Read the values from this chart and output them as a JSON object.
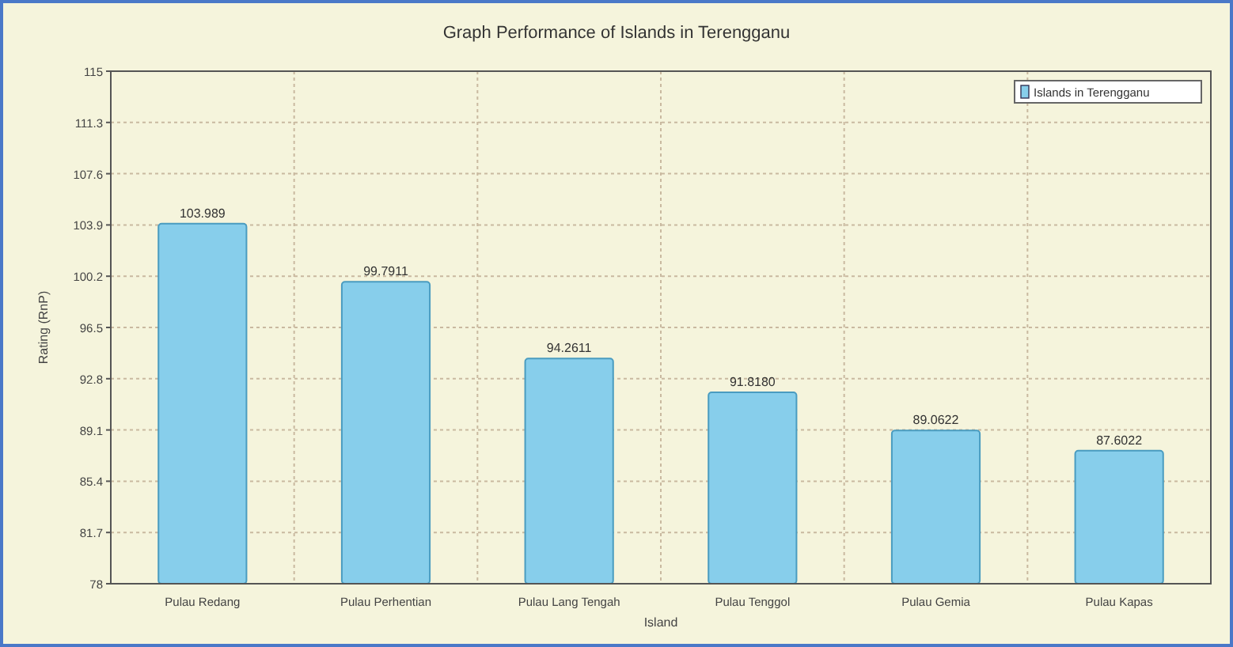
{
  "chart_data": {
    "type": "bar",
    "title": "Graph Performance of Islands in Terengganu",
    "xlabel": "Island",
    "ylabel": "Rating (RnP)",
    "categories": [
      "Pulau Redang",
      "Pulau Perhentian",
      "Pulau Lang Tengah",
      "Pulau Tenggol",
      "Pulau Gemia",
      "Pulau Kapas"
    ],
    "series": [
      {
        "name": "Islands in Terengganu",
        "color": "#87ceeb",
        "values": [
          103.989,
          99.7911,
          94.2611,
          91.818,
          89.0622,
          87.6022
        ],
        "value_labels": [
          "103.989",
          "99.7911",
          "94.2611",
          "91.8180",
          "89.0622",
          "87.6022"
        ]
      }
    ],
    "ylim": [
      78,
      115
    ],
    "yticks": [
      78,
      81.7,
      85.4,
      89.1,
      92.8,
      96.5,
      100.2,
      103.9,
      107.6,
      111.3,
      115
    ],
    "grid": true,
    "legend": "top right"
  }
}
